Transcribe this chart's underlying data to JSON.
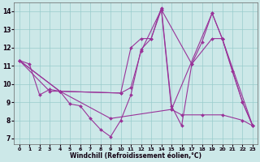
{
  "xlabel": "Windchill (Refroidissement éolien,°C)",
  "background_color": "#cce8e8",
  "grid_color": "#99cccc",
  "line_color": "#993399",
  "xlim": [
    -0.5,
    23.5
  ],
  "ylim": [
    6.7,
    14.5
  ],
  "yticks": [
    7,
    8,
    9,
    10,
    11,
    12,
    13,
    14
  ],
  "xticks": [
    0,
    1,
    2,
    3,
    4,
    5,
    6,
    7,
    8,
    9,
    10,
    11,
    12,
    13,
    14,
    15,
    16,
    17,
    18,
    19,
    20,
    21,
    22,
    23
  ],
  "lines": [
    {
      "x": [
        0,
        3,
        4,
        10,
        11,
        12,
        13,
        14,
        17,
        19,
        20,
        22,
        23
      ],
      "y": [
        11.3,
        9.6,
        9.6,
        9.5,
        12.0,
        12.5,
        12.5,
        14.1,
        11.1,
        12.5,
        12.5,
        9.0,
        7.7
      ]
    },
    {
      "x": [
        0,
        1,
        2,
        3,
        4,
        5,
        6,
        7,
        8,
        9,
        10,
        11,
        12,
        13,
        14,
        15,
        16,
        17,
        18,
        19,
        20,
        21,
        22,
        23
      ],
      "y": [
        11.3,
        11.1,
        9.4,
        9.7,
        9.6,
        8.9,
        8.8,
        8.1,
        7.5,
        7.1,
        8.0,
        9.4,
        11.9,
        12.5,
        14.2,
        8.8,
        7.7,
        11.1,
        12.3,
        13.9,
        12.5,
        10.7,
        9.0,
        7.7
      ]
    },
    {
      "x": [
        0,
        4,
        10,
        11,
        12,
        14,
        15,
        19,
        20,
        23
      ],
      "y": [
        11.3,
        9.6,
        9.5,
        9.8,
        11.8,
        14.1,
        8.6,
        13.9,
        12.5,
        7.7
      ]
    },
    {
      "x": [
        0,
        4,
        9,
        15,
        16,
        18,
        20,
        22,
        23
      ],
      "y": [
        11.3,
        9.6,
        8.1,
        8.6,
        8.3,
        8.3,
        8.3,
        8.0,
        7.7
      ]
    }
  ]
}
